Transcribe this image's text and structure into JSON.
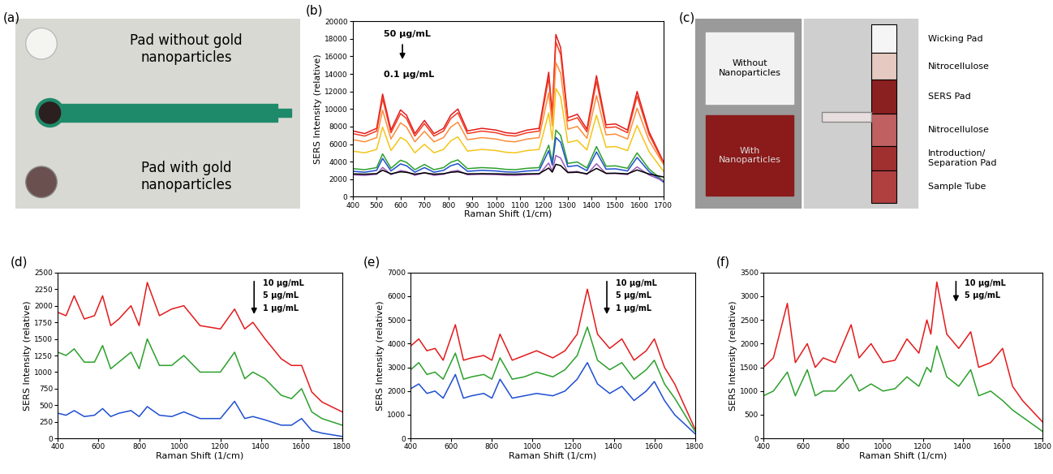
{
  "photo_a": {
    "panel": "(a)",
    "labels": [
      "Pad without gold\nnanoparticles",
      "Pad with gold\nnanoparticles"
    ]
  },
  "photo_c": {
    "panel": "(c)",
    "pad_labels": [
      "Without\nNanoparticles",
      "With\nNanoparticles"
    ],
    "strip_labels": [
      "Wicking Pad",
      "Nitrocellulose",
      "SERS Pad",
      "Nitrocellulose",
      "Introduction/\nSeparation Pad",
      "Sample Tube"
    ]
  },
  "chart_data": [
    {
      "panel": "(b)",
      "type": "line",
      "grid": false,
      "xlabel": "Raman Shift (1/cm)",
      "ylabel": "SERS Intensity (relative)",
      "annotations": [
        "50 μg/mL",
        "0.1 μg/mL"
      ],
      "xlim": [
        400,
        1700
      ],
      "xticks": [
        400,
        500,
        600,
        700,
        800,
        900,
        1000,
        1100,
        1200,
        1300,
        1400,
        1500,
        1600,
        1700
      ],
      "ylim": [
        0,
        20000
      ],
      "yticks": [
        0,
        2000,
        4000,
        6000,
        8000,
        10000,
        12000,
        14000,
        16000,
        18000,
        20000
      ],
      "x": [
        400,
        450,
        500,
        525,
        560,
        600,
        625,
        660,
        700,
        740,
        780,
        810,
        840,
        880,
        940,
        1000,
        1040,
        1080,
        1130,
        1180,
        1220,
        1235,
        1250,
        1270,
        1300,
        1340,
        1380,
        1420,
        1460,
        1500,
        1550,
        1590,
        1640,
        1700
      ],
      "series": [
        {
          "color": "#e31a1c",
          "values": [
            7500,
            7200,
            7800,
            11700,
            7600,
            9900,
            9300,
            7200,
            8700,
            7200,
            7800,
            9300,
            10000,
            7500,
            7800,
            7600,
            7300,
            7200,
            7600,
            7800,
            14200,
            9500,
            18500,
            17000,
            9000,
            9400,
            7700,
            13800,
            8200,
            8300,
            7600,
            12000,
            7400,
            4000
          ]
        },
        {
          "color": "#f03b20",
          "values": [
            7200,
            6915,
            7485,
            11190,
            7295,
            9480,
            8910,
            6915,
            8340,
            6915,
            7485,
            8910,
            9575,
            7200,
            7485,
            7295,
            7010,
            6915,
            7295,
            7485,
            13565,
            9100,
            17650,
            16225,
            8625,
            9005,
            7390,
            13185,
            7865,
            7960,
            7295,
            11475,
            7105,
            3875
          ]
        },
        {
          "color": "#fd8d3c",
          "values": [
            6500,
            6260,
            6740,
            9860,
            6580,
            8420,
            7940,
            6260,
            7460,
            6260,
            6740,
            7940,
            8500,
            6500,
            6740,
            6580,
            6340,
            6260,
            6580,
            6740,
            11860,
            8100,
            15300,
            14100,
            7700,
            8020,
            6660,
            11540,
            7060,
            7140,
            6580,
            10100,
            6420,
            3700
          ]
        },
        {
          "color": "#f5c518",
          "values": [
            5200,
            5005,
            5395,
            7930,
            5265,
            6760,
            6370,
            5005,
            5980,
            5005,
            5395,
            6370,
            6825,
            5200,
            5395,
            5265,
            5070,
            5005,
            5265,
            5395,
            9555,
            6500,
            12350,
            11375,
            6175,
            6435,
            5330,
            9295,
            5655,
            5720,
            5265,
            8125,
            5135,
            2925
          ]
        },
        {
          "color": "#2ca02c",
          "values": [
            3200,
            3080,
            3320,
            4880,
            3240,
            4160,
            3920,
            3080,
            3680,
            3080,
            3320,
            3920,
            4200,
            3200,
            3320,
            3240,
            3120,
            3080,
            3240,
            3320,
            5880,
            4000,
            7600,
            7000,
            3800,
            3960,
            3280,
            5720,
            3480,
            3520,
            3240,
            5000,
            3160,
            1800
          ]
        },
        {
          "color": "#1f4fd1",
          "values": [
            2900,
            2795,
            3005,
            4370,
            2935,
            3740,
            3530,
            2795,
            3320,
            2795,
            3005,
            3530,
            3775,
            2900,
            3005,
            2935,
            2830,
            2795,
            2935,
            3005,
            5245,
            3600,
            6750,
            6225,
            3425,
            3565,
            2970,
            5105,
            3145,
            3180,
            2935,
            4475,
            2865,
            1675
          ]
        },
        {
          "color": "#9b59b6",
          "values": [
            2500,
            2440,
            2560,
            3340,
            2520,
            2980,
            2860,
            2440,
            2740,
            2440,
            2560,
            2860,
            3000,
            2500,
            2560,
            2520,
            2460,
            2440,
            2520,
            2560,
            3840,
            2900,
            4700,
            4400,
            2800,
            2880,
            2540,
            3760,
            2640,
            2660,
            2520,
            3400,
            2480,
            1800
          ]
        },
        {
          "color": "#000000",
          "values": [
            2600,
            2570,
            2630,
            3020,
            2610,
            2840,
            2780,
            2570,
            2720,
            2570,
            2630,
            2780,
            2850,
            2600,
            2630,
            2610,
            2580,
            2570,
            2610,
            2630,
            3270,
            2800,
            3700,
            3550,
            2750,
            2790,
            2620,
            3230,
            2670,
            2680,
            2610,
            3050,
            2590,
            2250
          ]
        }
      ]
    },
    {
      "panel": "(d)",
      "type": "line",
      "grid": false,
      "xlabel": "Raman Shift (1/cm)",
      "ylabel": "SERS Intensity (relative)",
      "annotations": [
        "10 μg/mL",
        "5 μg/mL",
        "1 μg/mL"
      ],
      "xlim": [
        400,
        1800
      ],
      "xticks": [
        400,
        600,
        800,
        1000,
        1200,
        1400,
        1600,
        1800
      ],
      "ylim": [
        0,
        2500
      ],
      "yticks": [
        0,
        250,
        500,
        750,
        1000,
        1250,
        1500,
        1750,
        2000,
        2250,
        2500
      ],
      "x": [
        400,
        440,
        480,
        530,
        580,
        620,
        660,
        700,
        760,
        800,
        840,
        900,
        960,
        1020,
        1100,
        1200,
        1270,
        1320,
        1360,
        1420,
        1500,
        1550,
        1600,
        1650,
        1700,
        1800
      ],
      "series": [
        {
          "color": "#e31a1c",
          "values": [
            1900,
            1850,
            2150,
            1800,
            1850,
            2150,
            1700,
            1800,
            2000,
            1700,
            2350,
            1850,
            1950,
            2000,
            1700,
            1650,
            1950,
            1650,
            1750,
            1500,
            1200,
            1100,
            1100,
            700,
            550,
            400
          ]
        },
        {
          "color": "#2ca02c",
          "values": [
            1300,
            1250,
            1350,
            1150,
            1150,
            1400,
            1050,
            1150,
            1300,
            1050,
            1500,
            1100,
            1100,
            1250,
            1000,
            1000,
            1300,
            900,
            1000,
            900,
            650,
            600,
            750,
            400,
            300,
            200
          ]
        },
        {
          "color": "#1f4fd1",
          "values": [
            380,
            350,
            420,
            330,
            350,
            450,
            330,
            380,
            420,
            330,
            480,
            350,
            330,
            400,
            300,
            300,
            560,
            300,
            330,
            280,
            200,
            200,
            300,
            120,
            80,
            30
          ]
        }
      ]
    },
    {
      "panel": "(e)",
      "type": "line",
      "grid": false,
      "xlabel": "Raman Shift (1/cm)",
      "ylabel": "SERS Intensity (relative)",
      "annotations": [
        "10 μg/mL",
        "5 μg/mL",
        "1 μg/mL"
      ],
      "xlim": [
        400,
        1800
      ],
      "xticks": [
        400,
        600,
        800,
        1000,
        1200,
        1400,
        1600,
        1800
      ],
      "ylim": [
        0,
        7000
      ],
      "yticks": [
        0,
        1000,
        2000,
        3000,
        4000,
        5000,
        6000,
        7000
      ],
      "x": [
        400,
        440,
        480,
        520,
        560,
        620,
        660,
        700,
        760,
        800,
        840,
        900,
        960,
        1020,
        1100,
        1160,
        1220,
        1270,
        1320,
        1380,
        1440,
        1500,
        1560,
        1600,
        1650,
        1700,
        1800
      ],
      "series": [
        {
          "color": "#e31a1c",
          "values": [
            3900,
            4200,
            3700,
            3800,
            3300,
            4800,
            3300,
            3400,
            3500,
            3300,
            4400,
            3300,
            3500,
            3700,
            3400,
            3700,
            4400,
            6300,
            4400,
            3800,
            4200,
            3300,
            3700,
            4200,
            3000,
            2300,
            400
          ]
        },
        {
          "color": "#2ca02c",
          "values": [
            2900,
            3200,
            2700,
            2800,
            2500,
            3600,
            2500,
            2600,
            2700,
            2500,
            3400,
            2500,
            2600,
            2800,
            2600,
            2900,
            3500,
            4700,
            3300,
            2900,
            3200,
            2500,
            2900,
            3300,
            2300,
            1700,
            300
          ]
        },
        {
          "color": "#1f4fd1",
          "values": [
            2100,
            2300,
            1900,
            2000,
            1700,
            2700,
            1700,
            1800,
            1900,
            1700,
            2500,
            1700,
            1800,
            1900,
            1800,
            2000,
            2500,
            3200,
            2300,
            1900,
            2200,
            1600,
            2000,
            2400,
            1600,
            1000,
            200
          ]
        }
      ]
    },
    {
      "panel": "(f)",
      "type": "line",
      "grid": false,
      "xlabel": "Raman Shift (1/cm)",
      "ylabel": "SERS Intensity (relative)",
      "annotations": [
        "10 μg/mL",
        "5 μg/mL"
      ],
      "xlim": [
        400,
        1800
      ],
      "xticks": [
        400,
        600,
        800,
        1000,
        1200,
        1400,
        1600,
        1800
      ],
      "ylim": [
        0,
        3500
      ],
      "yticks": [
        0,
        500,
        1000,
        1500,
        2000,
        2500,
        3000,
        3500
      ],
      "x": [
        400,
        450,
        520,
        560,
        620,
        660,
        700,
        760,
        840,
        880,
        940,
        1000,
        1060,
        1120,
        1180,
        1220,
        1240,
        1270,
        1320,
        1380,
        1440,
        1480,
        1540,
        1600,
        1650,
        1700,
        1800
      ],
      "series": [
        {
          "color": "#e31a1c",
          "values": [
            1500,
            1700,
            2850,
            1600,
            2000,
            1500,
            1700,
            1600,
            2400,
            1700,
            2000,
            1600,
            1650,
            2100,
            1800,
            2500,
            2200,
            3300,
            2200,
            1900,
            2250,
            1500,
            1600,
            1900,
            1100,
            800,
            350
          ]
        },
        {
          "color": "#2ca02c",
          "values": [
            900,
            1000,
            1400,
            900,
            1450,
            900,
            1000,
            1000,
            1350,
            1000,
            1150,
            1000,
            1050,
            1300,
            1100,
            1500,
            1400,
            1950,
            1300,
            1100,
            1450,
            900,
            1000,
            800,
            600,
            450,
            150
          ]
        }
      ]
    }
  ]
}
